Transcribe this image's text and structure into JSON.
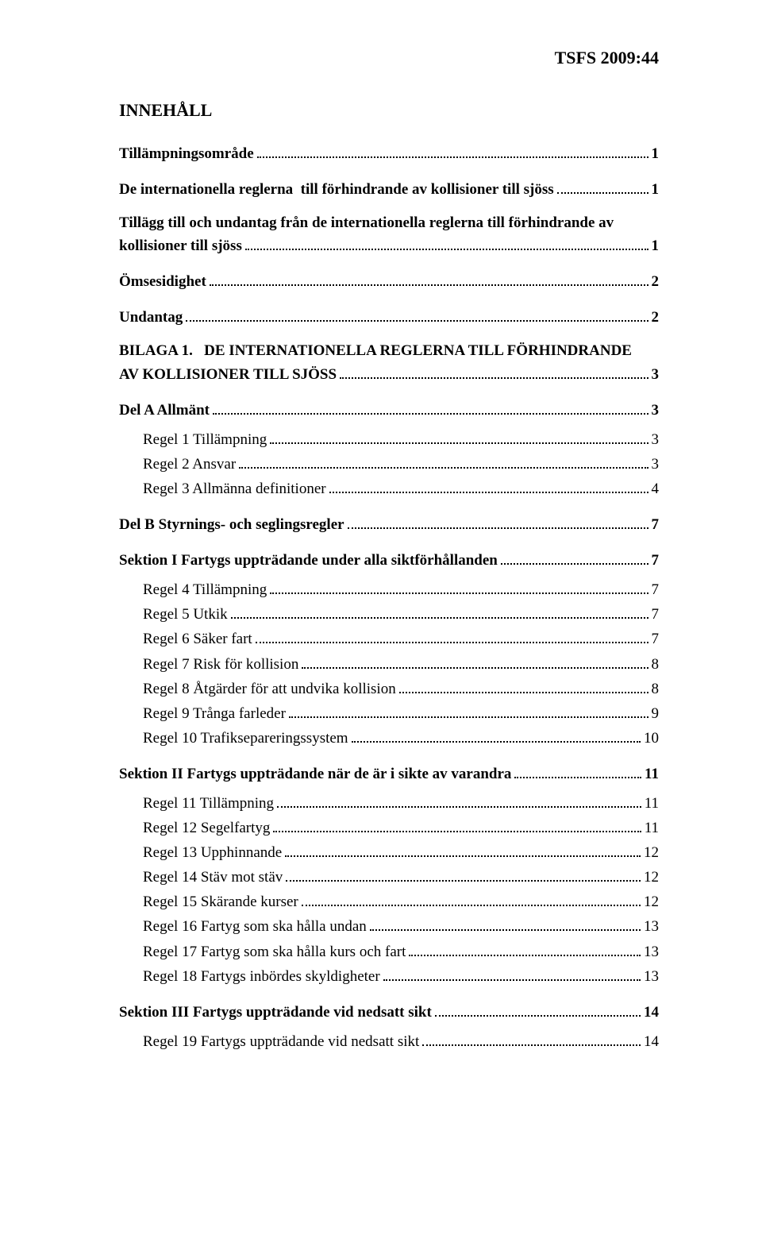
{
  "header": "TSFS 2009:44",
  "title": "INNEHÅLL",
  "toc": [
    {
      "label": "Tillämpningsområde",
      "page": "1",
      "bold": true,
      "gap": "none",
      "indent": false
    },
    {
      "label": "De internationella reglerna  till förhindrande av kollisioner till sjöss",
      "page": "1",
      "bold": true,
      "gap": "lg",
      "indent": false
    },
    {
      "label": "Tillägg till och undantag från de internationella reglerna till förhindrande av kollisioner till sjöss",
      "page": "1",
      "bold": true,
      "gap": "lg",
      "indent": false
    },
    {
      "label": "Ömsesidighet",
      "page": "2",
      "bold": true,
      "gap": "lg",
      "indent": false
    },
    {
      "label": "Undantag",
      "page": "2",
      "bold": true,
      "gap": "lg",
      "indent": false
    },
    {
      "label": "BILAGA 1.   DE INTERNATIONELLA REGLERNA TILL FÖRHINDRANDE AV KOLLISIONER TILL SJÖSS",
      "page": "3",
      "bold": true,
      "gap": "lg",
      "indent": false
    },
    {
      "label": "Del A Allmänt",
      "page": "3",
      "bold": true,
      "gap": "lg",
      "indent": false
    },
    {
      "label": "Regel 1 Tillämpning",
      "page": "3",
      "bold": false,
      "gap": "md",
      "indent": true
    },
    {
      "label": "Regel 2 Ansvar",
      "page": "3",
      "bold": false,
      "gap": "sm",
      "indent": true
    },
    {
      "label": "Regel 3 Allmänna definitioner",
      "page": "4",
      "bold": false,
      "gap": "sm",
      "indent": true
    },
    {
      "label": "Del B Styrnings- och seglingsregler",
      "page": "7",
      "bold": true,
      "gap": "lg",
      "indent": false
    },
    {
      "label": "Sektion I Fartygs uppträdande under alla siktförhållanden",
      "page": "7",
      "bold": true,
      "gap": "lg",
      "indent": false
    },
    {
      "label": "Regel 4 Tillämpning",
      "page": "7",
      "bold": false,
      "gap": "md",
      "indent": true
    },
    {
      "label": "Regel 5 Utkik",
      "page": "7",
      "bold": false,
      "gap": "sm",
      "indent": true
    },
    {
      "label": "Regel 6 Säker fart",
      "page": "7",
      "bold": false,
      "gap": "sm",
      "indent": true
    },
    {
      "label": "Regel 7 Risk för kollision",
      "page": "8",
      "bold": false,
      "gap": "sm",
      "indent": true
    },
    {
      "label": "Regel 8 Åtgärder för att undvika kollision",
      "page": "8",
      "bold": false,
      "gap": "sm",
      "indent": true
    },
    {
      "label": "Regel 9 Trånga farleder",
      "page": "9",
      "bold": false,
      "gap": "sm",
      "indent": true
    },
    {
      "label": "Regel 10 Trafiksepareringssystem",
      "page": "10",
      "bold": false,
      "gap": "sm",
      "indent": true
    },
    {
      "label": "Sektion II Fartygs uppträdande när de är i sikte av varandra",
      "page": "11",
      "bold": true,
      "gap": "lg",
      "indent": false
    },
    {
      "label": "Regel 11 Tillämpning",
      "page": "11",
      "bold": false,
      "gap": "md",
      "indent": true
    },
    {
      "label": "Regel 12 Segelfartyg",
      "page": "11",
      "bold": false,
      "gap": "sm",
      "indent": true
    },
    {
      "label": "Regel 13 Upphinnande",
      "page": "12",
      "bold": false,
      "gap": "sm",
      "indent": true
    },
    {
      "label": "Regel 14 Stäv mot stäv",
      "page": "12",
      "bold": false,
      "gap": "sm",
      "indent": true
    },
    {
      "label": "Regel 15 Skärande kurser",
      "page": "12",
      "bold": false,
      "gap": "sm",
      "indent": true
    },
    {
      "label": "Regel 16 Fartyg som ska hålla undan",
      "page": "13",
      "bold": false,
      "gap": "sm",
      "indent": true
    },
    {
      "label": "Regel 17 Fartyg som ska hålla kurs och fart",
      "page": "13",
      "bold": false,
      "gap": "sm",
      "indent": true
    },
    {
      "label": "Regel 18 Fartygs inbördes skyldigheter",
      "page": "13",
      "bold": false,
      "gap": "sm",
      "indent": true
    },
    {
      "label": "Sektion III Fartygs uppträdande vid nedsatt sikt",
      "page": "14",
      "bold": true,
      "gap": "lg",
      "indent": false
    },
    {
      "label": "Regel 19 Fartygs uppträdande vid nedsatt sikt",
      "page": "14",
      "bold": false,
      "gap": "md",
      "indent": true
    }
  ]
}
